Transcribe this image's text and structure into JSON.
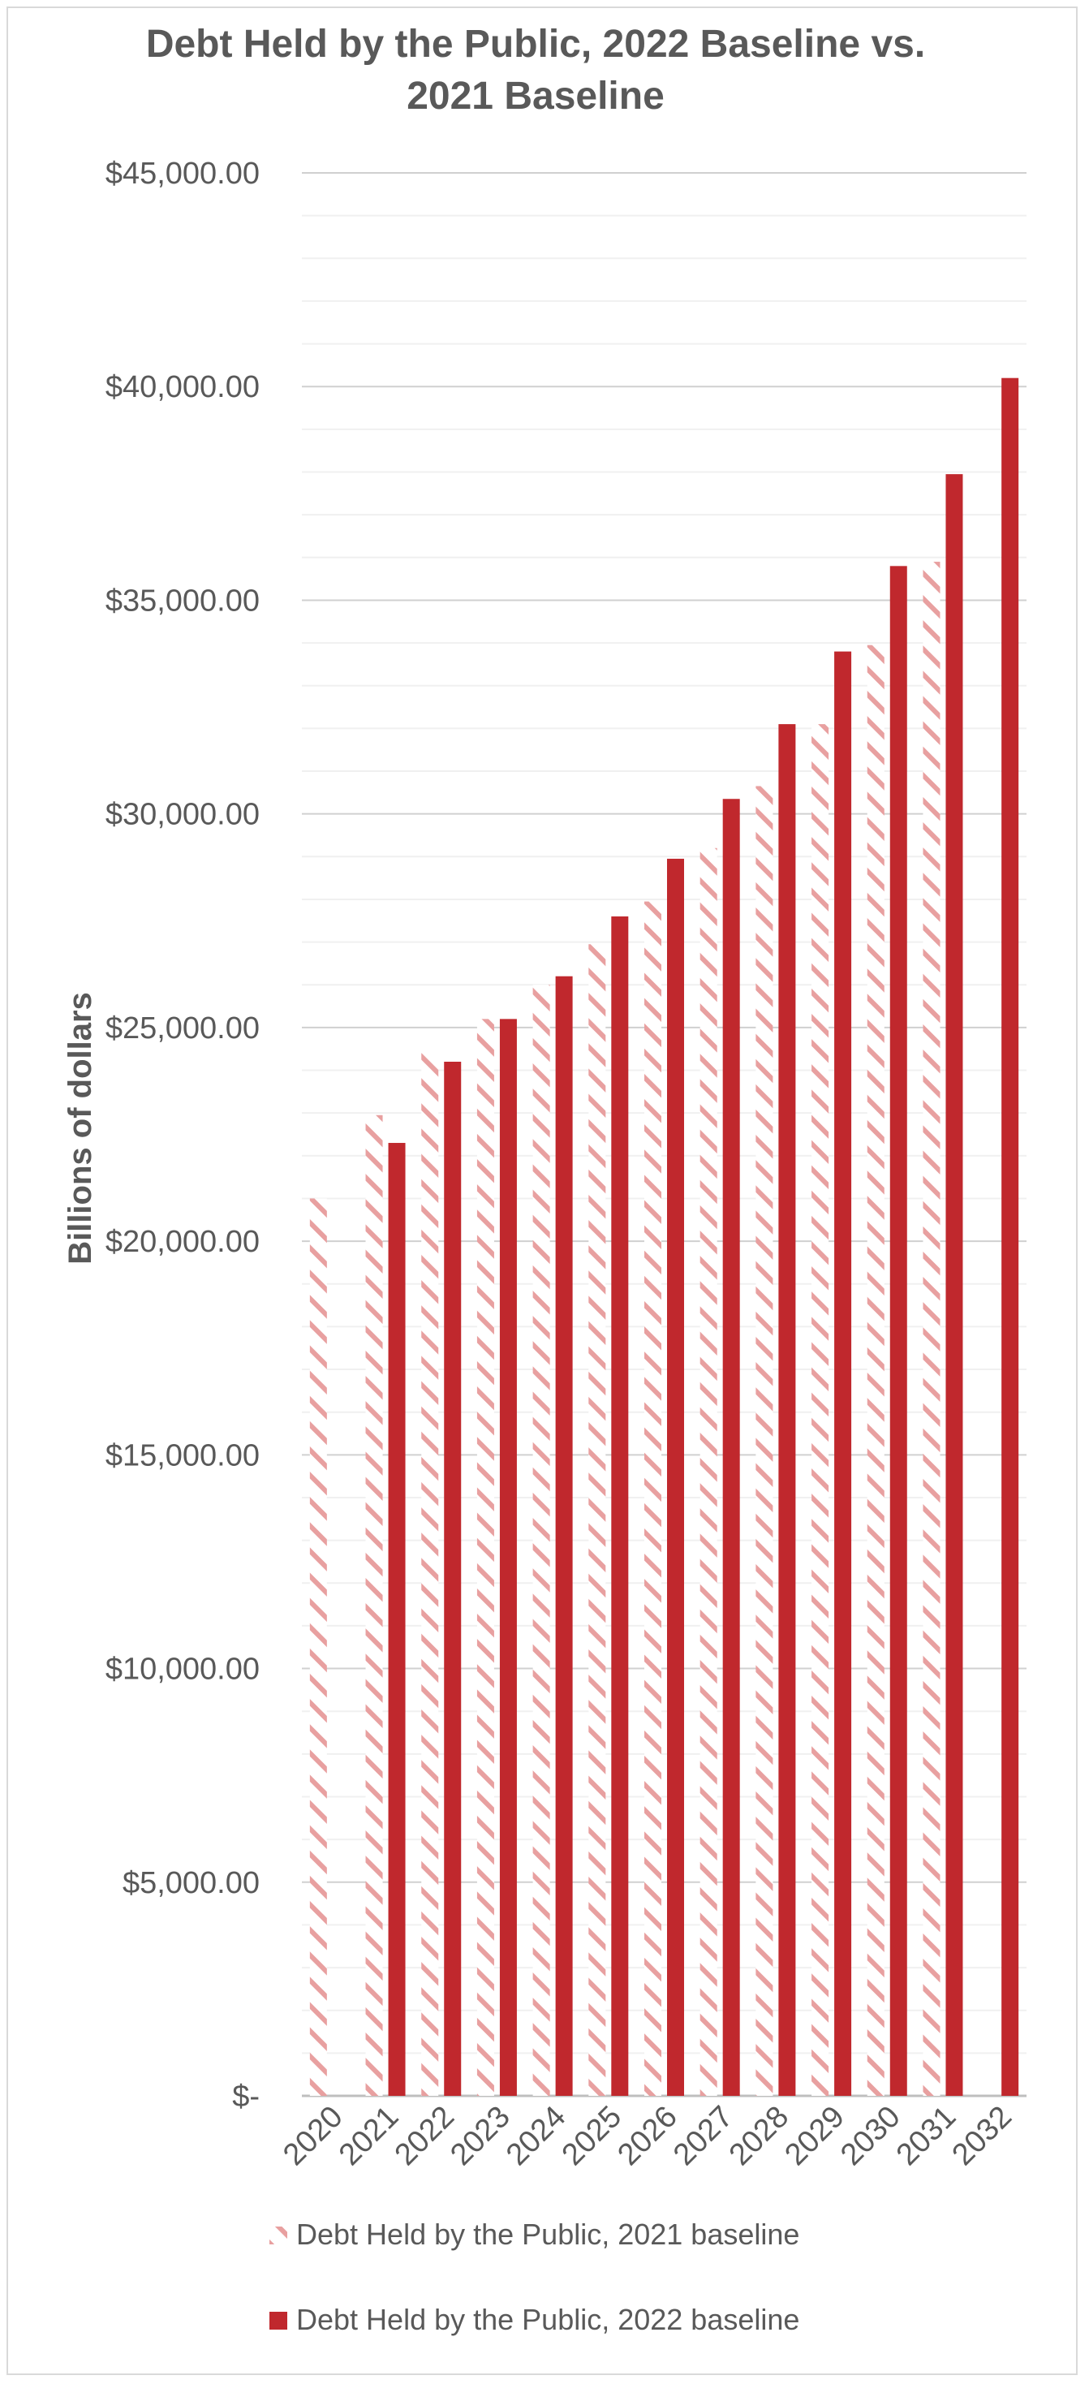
{
  "chart_data": {
    "type": "bar",
    "title_line1": "Debt Held by the Public, 2022 Baseline vs.",
    "title_line2": "2021 Baseline",
    "ylabel": "Billions of dollars",
    "xlabel": "",
    "ylim": [
      0,
      45000
    ],
    "y_ticks": [
      0,
      5000,
      10000,
      15000,
      20000,
      25000,
      30000,
      35000,
      40000,
      45000
    ],
    "y_tick_labels": [
      "$-",
      "$5,000.00",
      "$10,000.00",
      "$15,000.00",
      "$20,000.00",
      "$25,000.00",
      "$30,000.00",
      "$35,000.00",
      "$40,000.00",
      "$45,000.00"
    ],
    "minor_gridlines": true,
    "categories": [
      "2020",
      "2021",
      "2022",
      "2023",
      "2024",
      "2025",
      "2026",
      "2027",
      "2028",
      "2029",
      "2030",
      "2031",
      "2032"
    ],
    "series": [
      {
        "name": "Debt Held by the Public, 2021 baseline",
        "color": "#e8a0a0",
        "pattern": "hatched",
        "values": [
          21000,
          22950,
          24400,
          25200,
          26000,
          26950,
          27950,
          29200,
          30650,
          32100,
          33950,
          35900,
          null
        ]
      },
      {
        "name": "Debt Held by the Public, 2022 baseline",
        "color": "#c0282d",
        "pattern": "solid",
        "values": [
          null,
          22300,
          24200,
          25200,
          26200,
          27600,
          28950,
          30350,
          32100,
          33800,
          35800,
          37950,
          40200
        ]
      }
    ],
    "legend_position": "bottom"
  }
}
